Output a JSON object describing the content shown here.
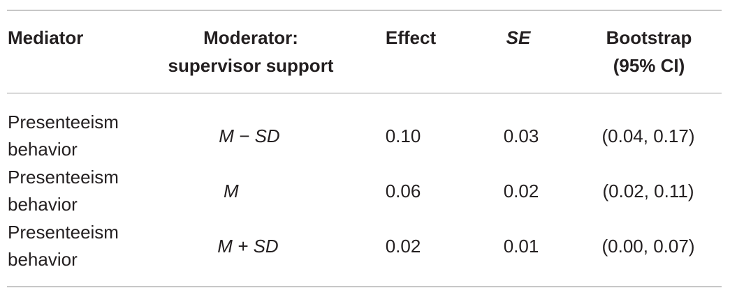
{
  "table": {
    "headers": [
      [
        "Mediator"
      ],
      [
        "Moderator:",
        "supervisor support"
      ],
      [
        "Effect"
      ],
      [
        "SE"
      ],
      [
        "Bootstrap",
        "(95% CI)"
      ]
    ],
    "rows": [
      {
        "mediator": [
          "Presenteeism",
          "behavior"
        ],
        "moderator": "M − SD",
        "effect": "0.10",
        "se": "0.03",
        "ci": "(0.04, 0.17)"
      },
      {
        "mediator": [
          "Presenteeism",
          "behavior"
        ],
        "moderator": "M",
        "effect": "0.06",
        "se": "0.02",
        "ci": "(0.02, 0.11)"
      },
      {
        "mediator": [
          "Presenteeism",
          "behavior"
        ],
        "moderator": "M + SD",
        "effect": "0.02",
        "se": "0.01",
        "ci": "(0.00, 0.07)"
      }
    ]
  }
}
